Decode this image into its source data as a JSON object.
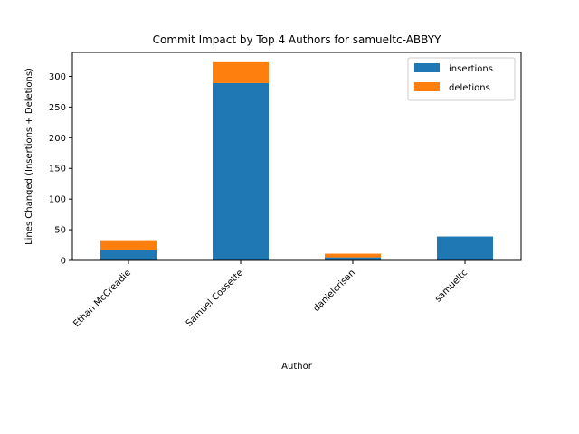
{
  "chart_data": {
    "type": "bar",
    "stacked": true,
    "title": "Commit Impact by Top 4 Authors for samueltc-ABBYY",
    "xlabel": "Author",
    "ylabel": "Lines Changed (Insertions + Deletions)",
    "categories": [
      "Ethan McCreadie",
      "Samuel Cossette",
      "danielcrisan",
      "samueltc"
    ],
    "series": [
      {
        "name": "insertions",
        "color": "#1f77b4",
        "values": [
          17,
          289,
          5,
          39
        ]
      },
      {
        "name": "deletions",
        "color": "#ff7f0e",
        "values": [
          16,
          34,
          6,
          0
        ]
      }
    ],
    "ylim": [
      0,
      339
    ],
    "yticks": [
      0,
      50,
      100,
      150,
      200,
      250,
      300
    ],
    "grid": false,
    "legend_position": "top-right"
  }
}
